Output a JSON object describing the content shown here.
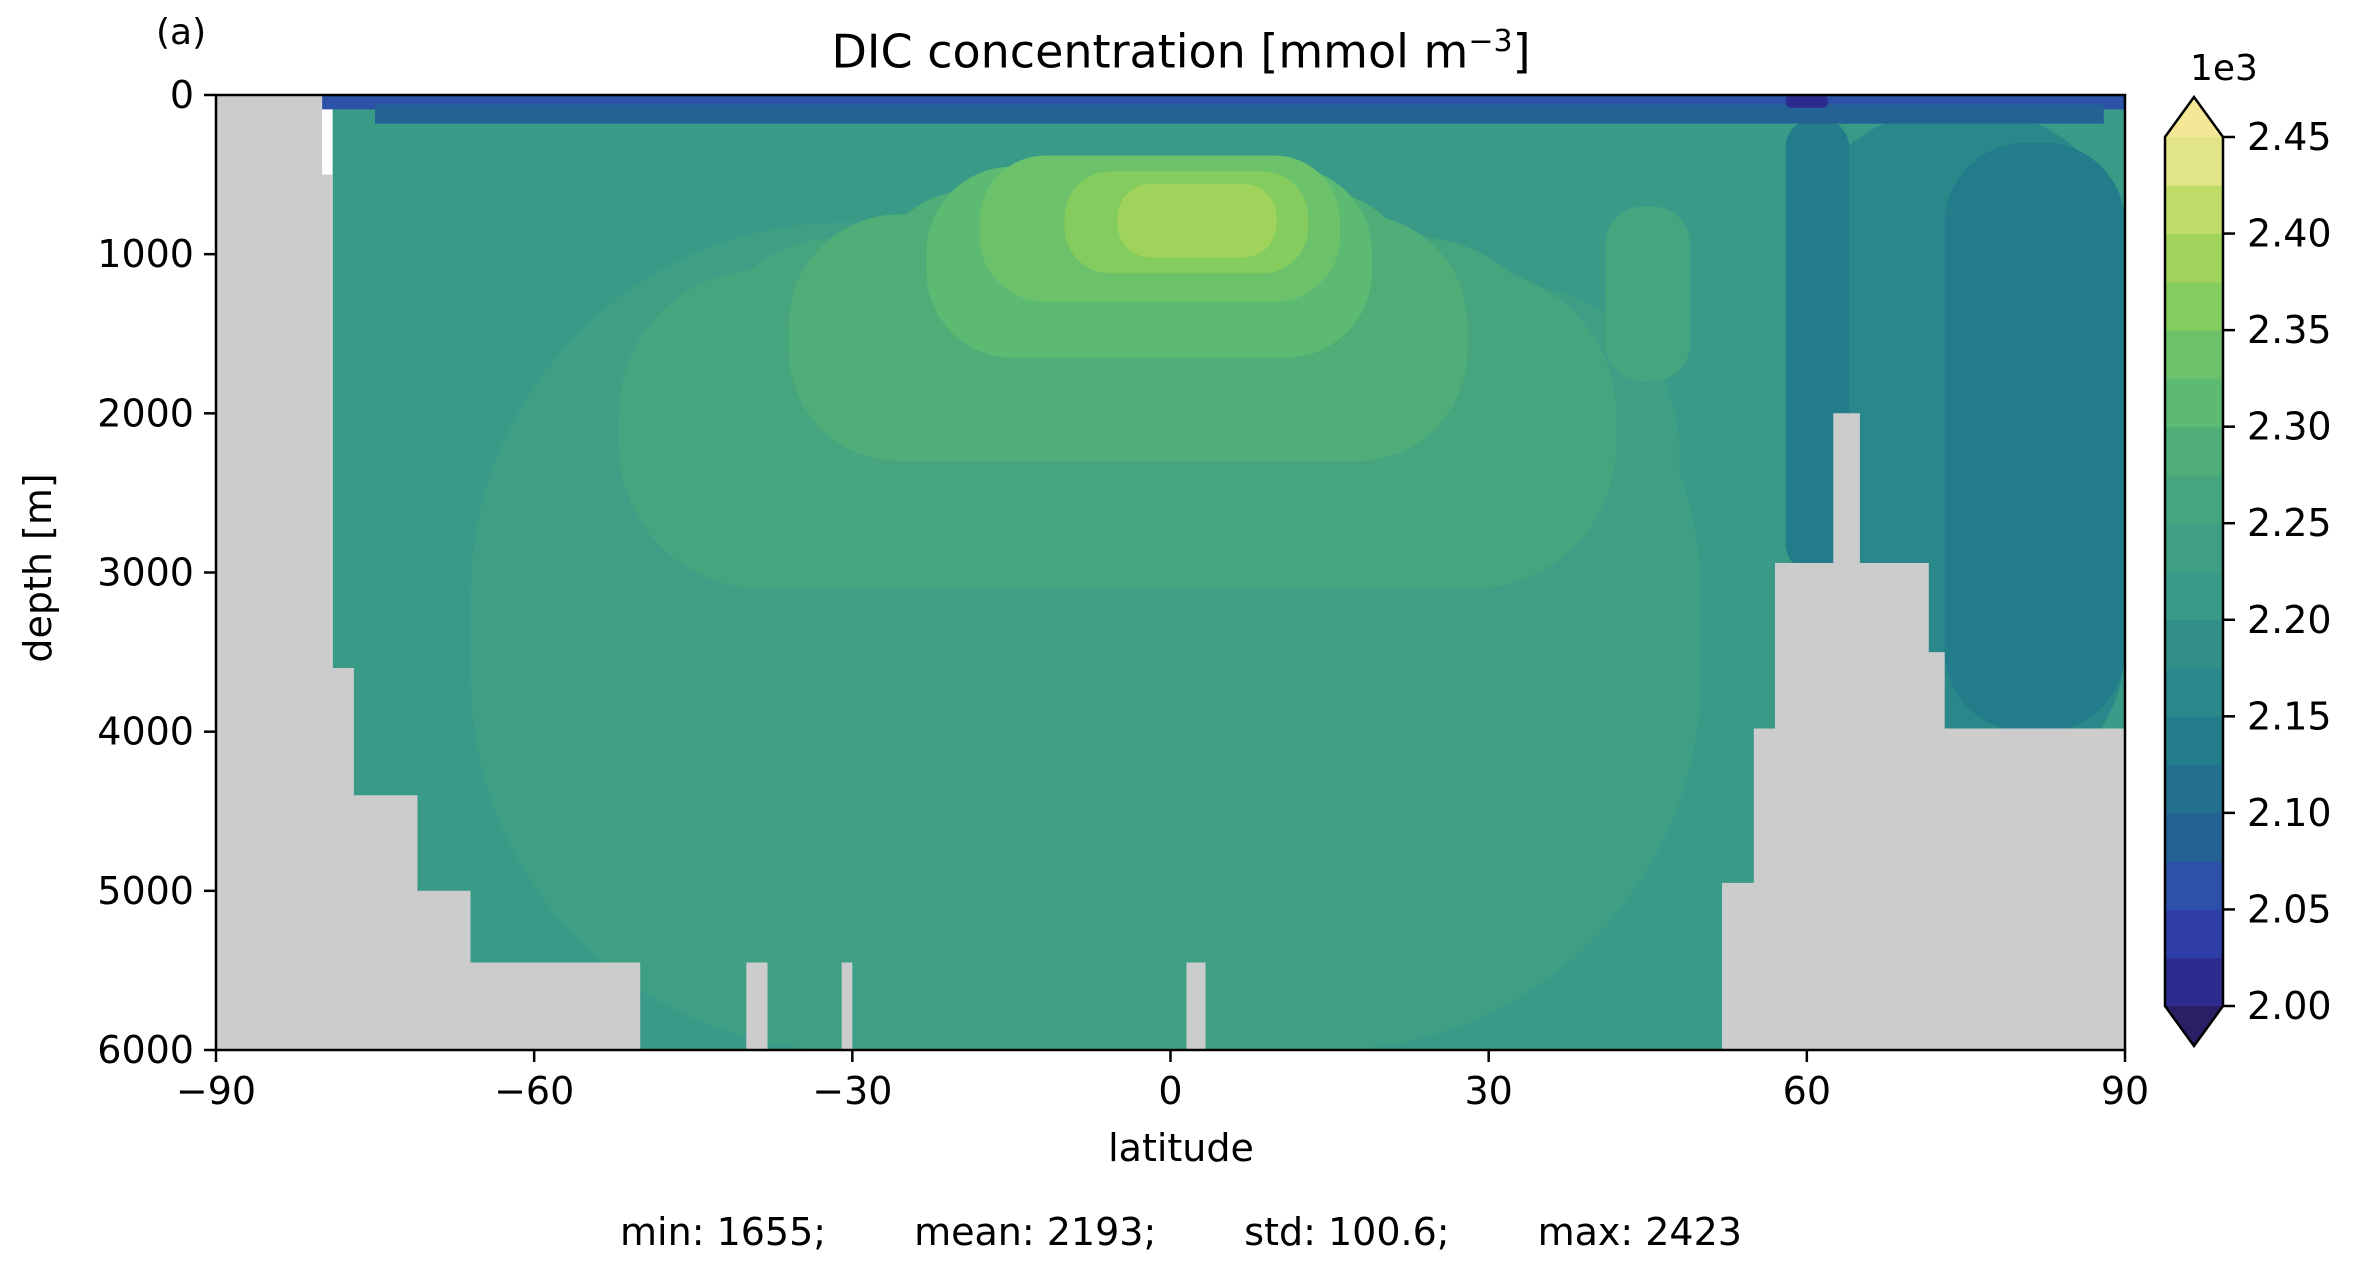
{
  "panel_label": "(a)",
  "colorbar": {
    "multiplier": "1e3",
    "levels": [
      2.0,
      2.025,
      2.05,
      2.075,
      2.1,
      2.125,
      2.15,
      2.175,
      2.2,
      2.225,
      2.25,
      2.275,
      2.3,
      2.325,
      2.35,
      2.375,
      2.4,
      2.425,
      2.45
    ],
    "tick_values": [
      2.0,
      2.05,
      2.1,
      2.15,
      2.2,
      2.25,
      2.3,
      2.35,
      2.4,
      2.45
    ],
    "tick_labels": [
      "2.00",
      "2.05",
      "2.10",
      "2.15",
      "2.20",
      "2.25",
      "2.30",
      "2.35",
      "2.40",
      "2.45"
    ],
    "colors": [
      "#2a1f64",
      "#2e2b8e",
      "#2f3da6",
      "#2c51a8",
      "#246296",
      "#22708c",
      "#237c8a",
      "#2a878a",
      "#318f88",
      "#399a88",
      "#3f9f85",
      "#46a57f",
      "#4fae78",
      "#5cba72",
      "#6cc26a",
      "#84cc5e",
      "#9fd35b",
      "#c0dc68",
      "#e2e587",
      "#f4e896"
    ],
    "extend": "both"
  },
  "stats": {
    "min": "min: 1655;",
    "mean": "mean: 2193;",
    "std": "std: 100.6;",
    "max": "max: 2423"
  },
  "chart_data": {
    "type": "heatmap",
    "title": "DIC concentration [mmol m⁻³]",
    "title_text": "DIC concentration [mmol m",
    "title_sup": "−3",
    "title_end": "]",
    "xlabel": "latitude",
    "ylabel": "depth [m]",
    "xlim": [
      -90,
      90
    ],
    "ylim": [
      6000,
      0
    ],
    "xticks": [
      -90,
      -60,
      -30,
      0,
      30,
      60,
      90
    ],
    "xtick_labels": [
      "−90",
      "−60",
      "−30",
      "0",
      "30",
      "60",
      "90"
    ],
    "yticks": [
      0,
      1000,
      2000,
      3000,
      4000,
      5000,
      6000
    ],
    "ytick_labels": [
      "0",
      "1000",
      "2000",
      "3000",
      "4000",
      "5000",
      "6000"
    ],
    "land_color": "#cccccc",
    "colormap": "haline",
    "value_range": [
      1655,
      2423
    ],
    "bathymetry": [
      {
        "lat": -90,
        "depth": 0
      },
      {
        "lat": -80,
        "depth": 0
      },
      {
        "lat": -80,
        "depth": 500
      },
      {
        "lat": -79,
        "depth": 500
      },
      {
        "lat": -79,
        "depth": 3600
      },
      {
        "lat": -77,
        "depth": 3600
      },
      {
        "lat": -77,
        "depth": 4400
      },
      {
        "lat": -71,
        "depth": 4400
      },
      {
        "lat": -71,
        "depth": 5000
      },
      {
        "lat": -66,
        "depth": 5000
      },
      {
        "lat": -66,
        "depth": 5450
      },
      {
        "lat": -50,
        "depth": 5450
      },
      {
        "lat": -50,
        "depth": 6000
      },
      {
        "lat": -40,
        "depth": 6000
      },
      {
        "lat": -40,
        "depth": 5450
      },
      {
        "lat": -38,
        "depth": 5450
      },
      {
        "lat": -38,
        "depth": 6000
      },
      {
        "lat": -31,
        "depth": 6000
      },
      {
        "lat": -31,
        "depth": 5450
      },
      {
        "lat": -30,
        "depth": 5450
      },
      {
        "lat": -30,
        "depth": 6000
      },
      {
        "lat": 1.5,
        "depth": 6000
      },
      {
        "lat": 1.5,
        "depth": 5450
      },
      {
        "lat": 3.3,
        "depth": 5450
      },
      {
        "lat": 3.3,
        "depth": 6000
      },
      {
        "lat": 52,
        "depth": 6000
      },
      {
        "lat": 52,
        "depth": 4950
      },
      {
        "lat": 55,
        "depth": 4950
      },
      {
        "lat": 55,
        "depth": 3980
      },
      {
        "lat": 57,
        "depth": 3980
      },
      {
        "lat": 57,
        "depth": 2940
      },
      {
        "lat": 62.5,
        "depth": 2940
      },
      {
        "lat": 62.5,
        "depth": 2000
      },
      {
        "lat": 65,
        "depth": 2000
      },
      {
        "lat": 65,
        "depth": 2940
      },
      {
        "lat": 71.5,
        "depth": 2940
      },
      {
        "lat": 71.5,
        "depth": 3500
      },
      {
        "lat": 73,
        "depth": 3500
      },
      {
        "lat": 73,
        "depth": 3980
      },
      {
        "lat": 90,
        "depth": 3980
      },
      {
        "lat": 90,
        "depth": 6000
      },
      {
        "lat": -90,
        "depth": 6000
      }
    ],
    "field_shapes": [
      {
        "value": 2200,
        "lat": [
          -79,
          90
        ],
        "depth": [
          0,
          6000
        ]
      },
      {
        "value": 2212,
        "lat": [
          -76,
          50
        ],
        "depth": [
          400,
          6000
        ]
      },
      {
        "value": 2225,
        "lat": [
          -66,
          50
        ],
        "depth": [
          800,
          6000
        ]
      },
      {
        "value": 2237,
        "lat": [
          -60,
          48
        ],
        "depth": [
          1200,
          3500
        ]
      },
      {
        "value": 2250,
        "lat": [
          -52,
          42
        ],
        "depth": [
          1100,
          3100
        ]
      },
      {
        "value": 2262,
        "lat": [
          -44,
          36
        ],
        "depth": [
          900,
          2750
        ]
      },
      {
        "value": 2275,
        "lat": [
          -36,
          28
        ],
        "depth": [
          750,
          2300
        ]
      },
      {
        "value": 2290,
        "lat": [
          -28,
          23
        ],
        "depth": [
          600,
          1950
        ]
      },
      {
        "value": 2312,
        "lat": [
          -23,
          19
        ],
        "depth": [
          450,
          1650
        ]
      },
      {
        "value": 2337,
        "lat": [
          -18,
          16
        ],
        "depth": [
          380,
          1300
        ]
      },
      {
        "value": 2362,
        "lat": [
          -10,
          13
        ],
        "depth": [
          480,
          1120
        ]
      },
      {
        "value": 2387,
        "lat": [
          -5,
          10
        ],
        "depth": [
          560,
          1020
        ]
      },
      {
        "value": 2150,
        "lat": [
          59,
          90
        ],
        "depth": [
          100,
          4400
        ]
      },
      {
        "value": 2125,
        "lat": [
          58,
          64
        ],
        "depth": [
          150,
          3000
        ]
      },
      {
        "value": 2137,
        "lat": [
          73,
          90
        ],
        "depth": [
          300,
          4000
        ]
      },
      {
        "value": 2262,
        "lat": [
          41,
          49
        ],
        "depth": [
          700,
          1800
        ]
      },
      {
        "value": 2050,
        "lat": [
          -80,
          90
        ],
        "depth": [
          0,
          90
        ]
      },
      {
        "value": 2075,
        "lat": [
          -75,
          88
        ],
        "depth": [
          60,
          180
        ]
      },
      {
        "value": 2000,
        "lat": [
          58,
          62
        ],
        "depth": [
          0,
          80
        ]
      }
    ]
  }
}
